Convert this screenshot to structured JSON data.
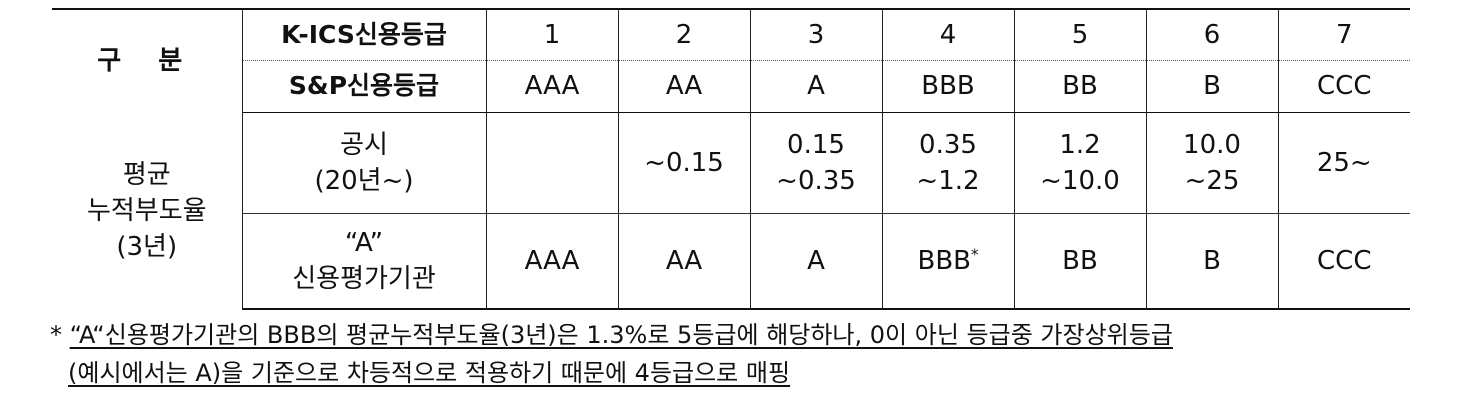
{
  "table": {
    "gubun_label": "구 분",
    "kics_label": "K-ICS신용등급",
    "sp_label": "S&P신용등급",
    "grades": [
      "1",
      "2",
      "3",
      "4",
      "5",
      "6",
      "7"
    ],
    "sp_ratings": [
      "AAA",
      "AA",
      "A",
      "BBB",
      "BB",
      "B",
      "CCC"
    ],
    "avg_label_line1": "평균",
    "avg_label_line2": "누적부도율",
    "avg_label_line3": "(3년)",
    "disclosure_label_line1": "공시",
    "disclosure_label_line2": "(20년~)",
    "disclosure_values": [
      {
        "line1": "",
        "line2": ""
      },
      {
        "line1": "~0.15",
        "line2": ""
      },
      {
        "line1": "0.15",
        "line2": "~0.35"
      },
      {
        "line1": "0.35",
        "line2": "~1.2"
      },
      {
        "line1": "1.2",
        "line2": "~10.0"
      },
      {
        "line1": "10.0",
        "line2": "~25"
      },
      {
        "line1": "25~",
        "line2": ""
      }
    ],
    "agency_label_line1": "“A”",
    "agency_label_line2": "신용평가기관",
    "agency_values": [
      "AAA",
      "AA",
      "A",
      "BBB",
      "BB",
      "B",
      "CCC"
    ],
    "agency_marker": "*"
  },
  "footnote": {
    "marker": "*",
    "line1": "“A“신용평가기관의 BBB의 평균누적부도율(3년)은 1.3%로 5등급에 해당하나, 0이 아닌 등급중 가장상위등급",
    "line2": "(예시에서는 A)을 기준으로 차등적으로 적용하기 때문에 4등급으로 매핑"
  }
}
